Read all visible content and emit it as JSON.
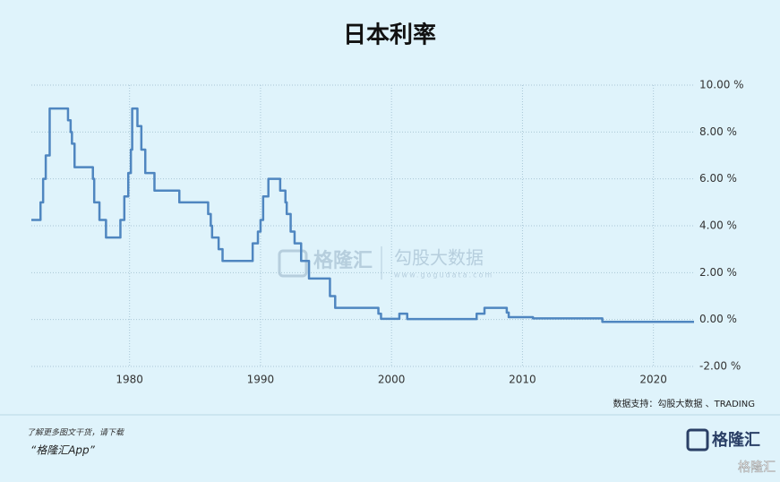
{
  "chart_data": {
    "type": "line",
    "title": "日本利率",
    "color": "#4f86c0",
    "x": [
      1972.5,
      1973.2,
      1973.2,
      1973.4,
      1973.4,
      1973.6,
      1973.6,
      1973.9,
      1973.9,
      1975.3,
      1975.3,
      1975.5,
      1975.5,
      1975.6,
      1975.6,
      1975.8,
      1975.8,
      1977.2,
      1977.2,
      1977.3,
      1977.3,
      1977.7,
      1977.7,
      1978.2,
      1978.2,
      1979.3,
      1979.3,
      1979.6,
      1979.6,
      1979.9,
      1979.9,
      1980.1,
      1980.1,
      1980.2,
      1980.2,
      1980.6,
      1980.6,
      1980.9,
      1980.9,
      1981.2,
      1981.2,
      1981.9,
      1981.9,
      1983.8,
      1983.8,
      1986.0,
      1986.0,
      1986.2,
      1986.2,
      1986.3,
      1986.3,
      1986.8,
      1986.8,
      1987.1,
      1987.1,
      1989.4,
      1989.4,
      1989.8,
      1989.8,
      1990.0,
      1990.0,
      1990.2,
      1990.2,
      1990.6,
      1990.6,
      1991.5,
      1991.5,
      1991.9,
      1991.9,
      1992.0,
      1992.0,
      1992.3,
      1992.3,
      1992.6,
      1992.6,
      1993.1,
      1993.1,
      1993.7,
      1993.7,
      1995.3,
      1995.3,
      1995.7,
      1995.7,
      1999.0,
      1999.0,
      1999.2,
      1999.2,
      2000.6,
      2000.6,
      2001.2,
      2001.2,
      2006.5,
      2006.5,
      2007.1,
      2007.1,
      2008.8,
      2008.8,
      2008.95,
      2008.95,
      2010.8,
      2010.8,
      2016.1,
      2016.1,
      2023.1
    ],
    "values": [
      4.25,
      4.25,
      5.0,
      5.0,
      6.0,
      6.0,
      7.0,
      7.0,
      9.0,
      9.0,
      8.5,
      8.5,
      8.0,
      8.0,
      7.5,
      7.5,
      6.5,
      6.5,
      6.0,
      6.0,
      5.0,
      5.0,
      4.25,
      4.25,
      3.5,
      3.5,
      4.25,
      4.25,
      5.25,
      5.25,
      6.25,
      6.25,
      7.25,
      7.25,
      9.0,
      9.0,
      8.25,
      8.25,
      7.25,
      7.25,
      6.25,
      6.25,
      5.5,
      5.5,
      5.0,
      5.0,
      4.5,
      4.5,
      4.0,
      4.0,
      3.5,
      3.5,
      3.0,
      3.0,
      2.5,
      2.5,
      3.25,
      3.25,
      3.75,
      3.75,
      4.25,
      4.25,
      5.25,
      5.25,
      6.0,
      6.0,
      5.5,
      5.5,
      5.0,
      5.0,
      4.5,
      4.5,
      3.75,
      3.75,
      3.25,
      3.25,
      2.5,
      2.5,
      1.75,
      1.75,
      1.0,
      1.0,
      0.5,
      0.5,
      0.25,
      0.25,
      0.03,
      0.03,
      0.25,
      0.25,
      0.02,
      0.02,
      0.25,
      0.25,
      0.5,
      0.5,
      0.3,
      0.3,
      0.1,
      0.1,
      0.05,
      0.05,
      -0.1,
      -0.1
    ],
    "xlim": [
      1972.5,
      2023.1
    ],
    "xticks": [
      1980,
      1990,
      2000,
      2010,
      2020
    ],
    "ylim": [
      -2,
      10
    ],
    "yticks": [
      {
        "value": -2,
        "label": "-2.00 %"
      },
      {
        "value": 0,
        "label": "0.00 %"
      },
      {
        "value": 2,
        "label": "2.00 %"
      },
      {
        "value": 4,
        "label": "4.00 %"
      },
      {
        "value": 6,
        "label": "6.00 %"
      },
      {
        "value": 8,
        "label": "8.00 %"
      },
      {
        "value": 10,
        "label": "10.00 %"
      }
    ],
    "grid": true,
    "source": "数据支持：勾股大数据 、TRADING"
  },
  "watermark": {
    "brand": "格隆汇",
    "name": "勾股大数据",
    "url": "www.gogudata.com"
  },
  "footer": {
    "line1": "了解更多图文干货，请下载",
    "line2": "“格隆汇App”",
    "logo": "格隆汇",
    "corner": "格隆汇"
  }
}
